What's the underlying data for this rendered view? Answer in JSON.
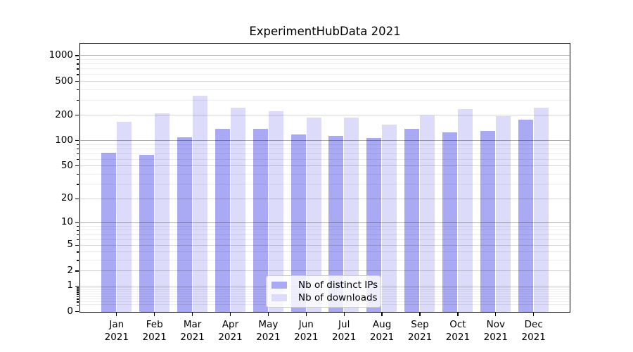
{
  "title": "ExperimentHubData 2021",
  "chart_data": {
    "type": "bar",
    "title": "ExperimentHubData 2021",
    "categories": [
      "Jan 2021",
      "Feb 2021",
      "Mar 2021",
      "Apr 2021",
      "May 2021",
      "Jun 2021",
      "Jul 2021",
      "Aug 2021",
      "Sep 2021",
      "Oct 2021",
      "Nov 2021",
      "Dec 2021"
    ],
    "series": [
      {
        "name": "Nb of distinct IPs",
        "color": "#a9a9f4",
        "values": [
          72,
          68,
          111,
          140,
          139,
          118,
          115,
          109,
          140,
          126,
          132,
          178
        ]
      },
      {
        "name": "Nb of downloads",
        "color": "#dcdcfa",
        "values": [
          168,
          212,
          340,
          245,
          223,
          190,
          189,
          156,
          201,
          237,
          195,
          245
        ]
      }
    ],
    "xlabel": "",
    "ylabel": "",
    "yscale": "log1p",
    "ylim": [
      0,
      1376
    ],
    "yticks": [
      0,
      1,
      2,
      5,
      10,
      20,
      50,
      100,
      200,
      500,
      1000
    ],
    "grid": {
      "on": true,
      "strong": [
        10,
        100,
        1000
      ],
      "medium": [
        1,
        2,
        5,
        20,
        50,
        200,
        500
      ],
      "faint": [
        0.2,
        0.3,
        0.4,
        0.5,
        0.6,
        0.7,
        0.8,
        0.9,
        3,
        4,
        6,
        7,
        8,
        9,
        30,
        40,
        60,
        70,
        80,
        90,
        300,
        400,
        600,
        700,
        800,
        900
      ]
    },
    "legend_position": "lower center",
    "colors": {
      "spine": "#000000",
      "background": "#ffffff",
      "legend_border": "#cccccc"
    }
  }
}
